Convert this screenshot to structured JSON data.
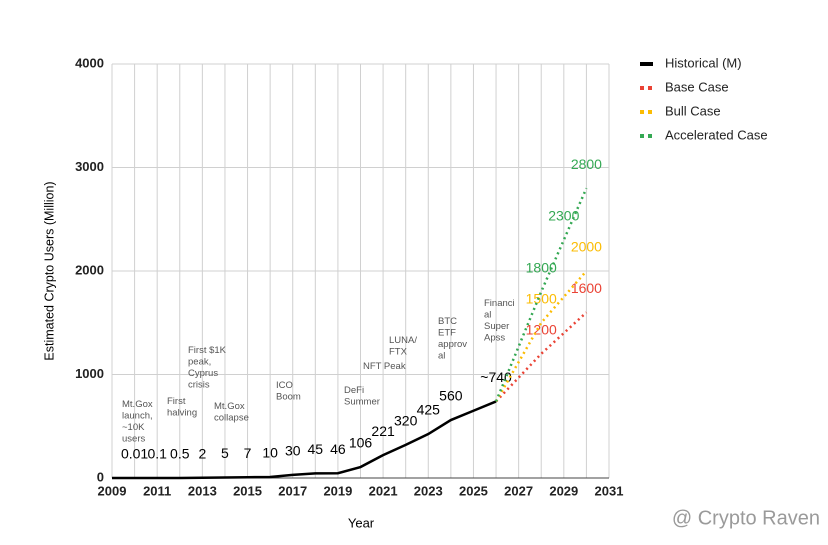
{
  "chart_data": {
    "type": "line",
    "x_label": "Year",
    "y_label": "Estimated Crypto Users (Million)",
    "xlim": [
      2009,
      2031
    ],
    "xticks": [
      2009,
      2011,
      2013,
      2015,
      2017,
      2019,
      2021,
      2023,
      2025,
      2027,
      2029,
      2031
    ],
    "x_minor_ticks": [
      2010,
      2012,
      2014,
      2016,
      2018,
      2020,
      2022,
      2024,
      2026,
      2028,
      2030
    ],
    "ylim": [
      0,
      4000
    ],
    "yticks": [
      0,
      1000,
      2000,
      3000,
      4000
    ],
    "grid": true,
    "legend": "right",
    "series": [
      {
        "name": "Historical (M)",
        "color": "#000000",
        "style": "solid",
        "x": [
          2009,
          2010,
          2011,
          2012,
          2013,
          2014,
          2015,
          2016,
          2017,
          2018,
          2019,
          2020,
          2021,
          2022,
          2023,
          2024,
          2025,
          2026
        ],
        "values": [
          0,
          0.01,
          0.1,
          0.5,
          2,
          5,
          7,
          10,
          30,
          45,
          46,
          106,
          221,
          320,
          425,
          560,
          650,
          740
        ],
        "value_labels": [
          null,
          "0.01",
          "0.1",
          "0.5",
          "2",
          "5",
          "7",
          "10",
          "30",
          "45",
          "46",
          "106",
          "221",
          "320",
          "425",
          "560",
          null,
          "~740"
        ]
      },
      {
        "name": "Base Case",
        "color": "#ea4335",
        "style": "dotted",
        "x": [
          2026,
          2028,
          2030
        ],
        "values": [
          740,
          1200,
          1600
        ],
        "value_labels": [
          null,
          "1200",
          "1600"
        ]
      },
      {
        "name": "Bull Case",
        "color": "#fbbc04",
        "style": "dotted",
        "x": [
          2026,
          2028,
          2030
        ],
        "values": [
          740,
          1500,
          2000
        ],
        "value_labels": [
          null,
          "1500",
          "2000"
        ]
      },
      {
        "name": "Accelerated Case",
        "color": "#34a853",
        "style": "dotted",
        "x": [
          2026,
          2028,
          2029,
          2030
        ],
        "values": [
          740,
          1800,
          2300,
          2800
        ],
        "value_labels": [
          null,
          "1800",
          "2300",
          "2800"
        ]
      }
    ],
    "annotations": [
      [
        "Mt.Gox",
        "launch,",
        "~10K",
        "users"
      ],
      [
        "First",
        "halving"
      ],
      [
        "First $1K",
        "peak,",
        "Cyprus",
        "crisis"
      ],
      [
        "Mt.Gox",
        "collapse"
      ],
      [
        "ICO",
        "Boom"
      ],
      [
        "DeFi",
        "Summer"
      ],
      [
        "NFT Peak"
      ],
      [
        "LUNA/",
        "FTX"
      ],
      [
        "BTC",
        "ETF",
        "approv",
        "al"
      ],
      [
        "Financi",
        "al",
        "Super",
        "Apss"
      ]
    ],
    "watermark": "@ Crypto Raven"
  }
}
